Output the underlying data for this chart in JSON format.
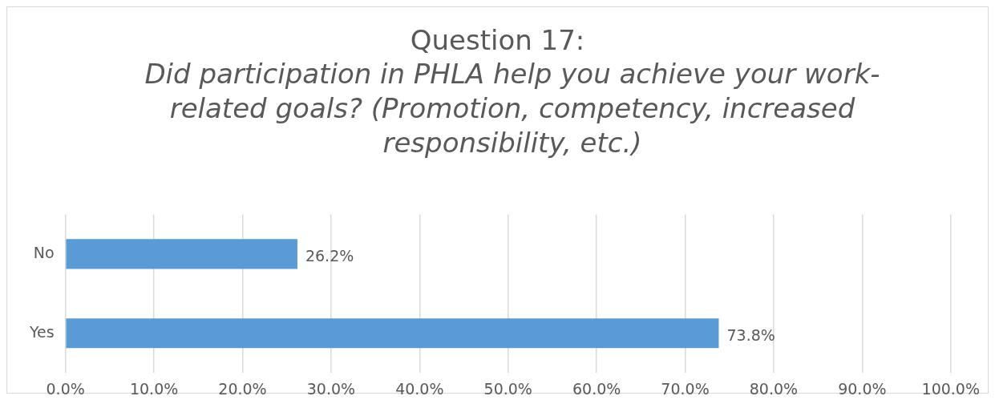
{
  "chart_data": {
    "type": "bar",
    "orientation": "horizontal",
    "title": "Question 17:",
    "subtitle": "Did participation in PHLA help you achieve your work-related goals? (Promotion, competency, increased responsibility, etc.)",
    "categories": [
      "No",
      "Yes"
    ],
    "values": [
      26.2,
      73.8
    ],
    "color": "#5b9bd5",
    "value_labels": [
      "26.2%",
      "73.8%"
    ],
    "xlim": [
      0,
      100
    ],
    "xticks": [
      {
        "value": 0,
        "label": "0.0%"
      },
      {
        "value": 10,
        "label": "10.0%"
      },
      {
        "value": 20,
        "label": "20.0%"
      },
      {
        "value": 30,
        "label": "30.0%"
      },
      {
        "value": 40,
        "label": "40.0%"
      },
      {
        "value": 50,
        "label": "50.0%"
      },
      {
        "value": 60,
        "label": "60.0%"
      },
      {
        "value": 70,
        "label": "70.0%"
      },
      {
        "value": 80,
        "label": "80.0%"
      },
      {
        "value": 90,
        "label": "90.0%"
      },
      {
        "value": 100,
        "label": "100.0%"
      }
    ],
    "grid": "x",
    "legend": false
  }
}
